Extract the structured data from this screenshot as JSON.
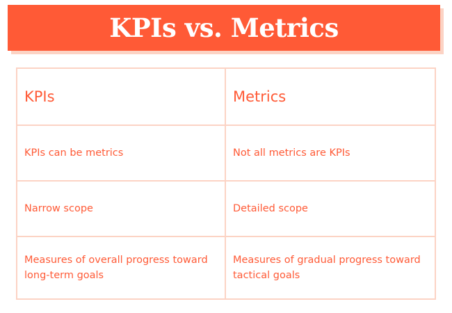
{
  "title": "KPIs vs. Metrics",
  "colors": {
    "accent": "#ff5a36",
    "shadow": "#fcd3c4",
    "border": "#fcd3c4",
    "background": "#ffffff"
  },
  "table": {
    "headers": [
      "KPIs",
      "Metrics"
    ],
    "rows": [
      [
        "KPIs can be metrics",
        "Not all metrics are KPIs"
      ],
      [
        "Narrow scope",
        "Detailed scope"
      ],
      [
        "Measures of overall progress toward long-term goals",
        "Measures of gradual progress toward tactical goals"
      ]
    ]
  }
}
